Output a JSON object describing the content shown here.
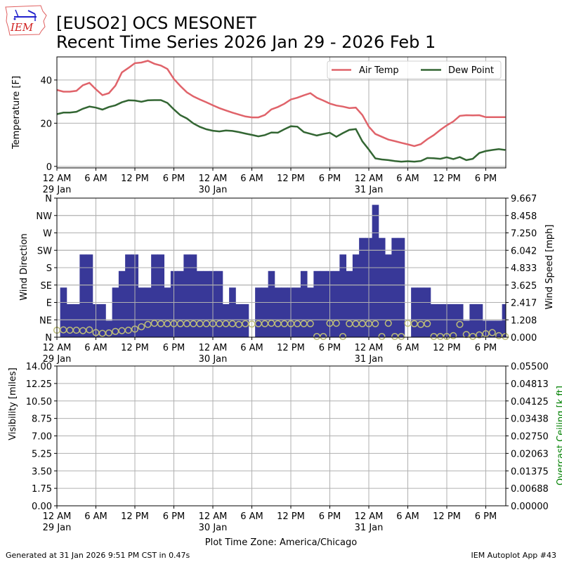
{
  "header": {
    "title_line1": "[EUSO2] OCS MESONET",
    "title_line2": "Recent Time Series 2026 Jan 29 - 2026 Feb 1",
    "logo_text": "IEM"
  },
  "footer": {
    "generated": "Generated at 31 Jan 2026 9:51 PM CST in 0.47s",
    "app": "IEM Autoplot App #43",
    "timezone": "Plot Time Zone: America/Chicago"
  },
  "colors": {
    "air_temp": "#e0636a",
    "dew_point": "#336633",
    "wind_speed_bar": "#383898",
    "wind_dir_marker": "#bdbd78",
    "ceiling_label": "#008000",
    "grid": "#b0b0b0"
  },
  "chart_data": [
    {
      "type": "line",
      "name": "temperature",
      "ylabel": "Temperature [F]",
      "ylim": [
        -0.7,
        50.7
      ],
      "yticks": [
        "0",
        "20",
        "40"
      ],
      "ytick_values": [
        0,
        20,
        40
      ],
      "x_unit": "hours since 29 Jan 12 AM",
      "xlim": [
        0,
        69.08
      ],
      "xtick_hours": [
        0,
        6,
        12,
        18,
        24,
        30,
        36,
        42,
        48,
        54,
        60,
        66
      ],
      "xtick_labels": [
        "12 AM",
        "6 AM",
        "12 PM",
        "6 PM",
        "12 AM",
        "6 AM",
        "12 PM",
        "6 PM",
        "12 AM",
        "6 AM",
        "12 PM",
        "6 PM"
      ],
      "day_labels": [
        {
          "hour": 0,
          "label": "29 Jan"
        },
        {
          "hour": 24,
          "label": "30 Jan"
        },
        {
          "hour": 48,
          "label": "31 Jan"
        }
      ],
      "grid": true,
      "legend": {
        "placement": "top-right",
        "entries": [
          "Air Temp",
          "Dew Point"
        ]
      },
      "series": [
        {
          "name": "Air Temp",
          "values": [
            35.4,
            34.6,
            34.6,
            35.0,
            37.6,
            38.7,
            35.7,
            33.0,
            33.9,
            37.4,
            43.5,
            45.6,
            47.8,
            48.1,
            48.9,
            47.5,
            46.7,
            45.1,
            40.5,
            37.2,
            34.3,
            32.4,
            31.0,
            29.7,
            28.3,
            27.0,
            25.9,
            24.9,
            24.0,
            23.1,
            22.7,
            22.7,
            23.8,
            26.4,
            27.5,
            29.0,
            31.0,
            31.8,
            32.9,
            33.9,
            31.8,
            30.5,
            29.1,
            28.2,
            27.7,
            27.0,
            27.2,
            23.8,
            18.4,
            15.0,
            13.7,
            12.4,
            11.7,
            10.9,
            10.2,
            9.4,
            10.3,
            12.6,
            14.5,
            16.9,
            19.0,
            20.8,
            23.4,
            23.7,
            23.6,
            23.7,
            22.8,
            22.8,
            22.8,
            22.8
          ]
        },
        {
          "name": "Dew Point",
          "values": [
            24.2,
            24.9,
            24.9,
            25.3,
            26.7,
            27.7,
            27.2,
            26.3,
            27.5,
            28.3,
            29.7,
            30.6,
            30.5,
            29.9,
            30.6,
            30.7,
            30.7,
            29.4,
            26.4,
            23.7,
            22.2,
            19.9,
            18.3,
            17.2,
            16.5,
            16.2,
            16.6,
            16.4,
            15.9,
            15.2,
            14.6,
            13.9,
            14.5,
            15.7,
            15.6,
            17.2,
            18.6,
            18.4,
            15.9,
            15.1,
            14.3,
            15.0,
            15.6,
            13.7,
            15.4,
            16.9,
            17.3,
            11.6,
            7.8,
            3.7,
            3.2,
            2.9,
            2.5,
            2.2,
            2.4,
            2.2,
            2.5,
            3.9,
            3.8,
            3.5,
            4.2,
            3.4,
            4.3,
            2.9,
            3.5,
            6.2,
            7.1,
            7.6,
            8.0,
            7.6
          ]
        }
      ]
    },
    {
      "type": "bar",
      "name": "wind",
      "ylabel": "Wind Direction",
      "y2label": "Wind Speed [mph]",
      "ylim": [
        0,
        360
      ],
      "yticks": [
        "N",
        "NE",
        "E",
        "SE",
        "S",
        "SW",
        "W",
        "NW",
        "N"
      ],
      "ytick_values": [
        0,
        45,
        90,
        135,
        180,
        225,
        270,
        315,
        360
      ],
      "y2lim": [
        0,
        9.667
      ],
      "y2ticks": [
        "0.000",
        "1.208",
        "2.417",
        "3.625",
        "4.833",
        "6.042",
        "7.250",
        "8.458",
        "9.667"
      ],
      "grid": true,
      "wind_speed_mph": [
        null,
        3.45,
        2.3,
        2.3,
        5.75,
        5.75,
        2.3,
        2.3,
        1.15,
        3.45,
        4.6,
        5.75,
        5.75,
        3.45,
        3.45,
        5.75,
        5.75,
        3.45,
        4.6,
        4.6,
        5.75,
        5.75,
        4.6,
        4.6,
        4.6,
        4.6,
        2.3,
        3.45,
        2.3,
        2.3,
        0,
        3.45,
        3.45,
        4.6,
        3.45,
        3.45,
        3.45,
        3.45,
        4.6,
        3.45,
        4.6,
        4.6,
        4.6,
        4.6,
        5.75,
        4.6,
        5.75,
        6.9,
        6.9,
        9.2,
        6.9,
        5.75,
        6.9,
        6.9,
        0,
        3.45,
        3.45,
        3.45,
        2.3,
        2.3,
        2.3,
        2.3,
        2.3,
        1.15,
        2.3,
        2.3,
        1.15,
        1.15,
        1.15,
        2.3
      ],
      "wind_direction_deg": [
        18,
        19,
        18,
        18,
        17,
        19,
        12,
        10,
        11,
        15,
        17,
        18,
        21,
        27,
        33,
        36,
        35,
        35,
        35,
        35,
        35,
        35,
        35,
        35,
        35,
        35,
        35,
        35,
        33,
        35,
        34,
        35,
        35,
        36,
        35,
        35,
        35,
        35,
        35,
        35,
        1,
        1,
        36,
        36,
        1,
        35,
        35,
        35,
        35,
        35,
        0,
        36,
        0,
        1,
        36,
        35,
        33,
        35,
        1,
        1,
        1,
        4,
        33,
        7,
        2,
        6,
        9,
        12,
        4,
        1
      ]
    },
    {
      "type": "line",
      "name": "visibility",
      "ylabel": "Visibility [miles]",
      "y2label": "Overcast Ceiling [k ft]",
      "ylim": [
        0,
        14
      ],
      "yticks": [
        "0.00",
        "1.75",
        "3.50",
        "5.25",
        "7.00",
        "8.75",
        "10.50",
        "12.25",
        "14.00"
      ],
      "y2lim": [
        0,
        0.055
      ],
      "y2ticks": [
        "0.00000",
        "0.00688",
        "0.01375",
        "0.02063",
        "0.02750",
        "0.03438",
        "0.04125",
        "0.04813",
        "0.05500"
      ],
      "grid": true,
      "series": []
    }
  ]
}
